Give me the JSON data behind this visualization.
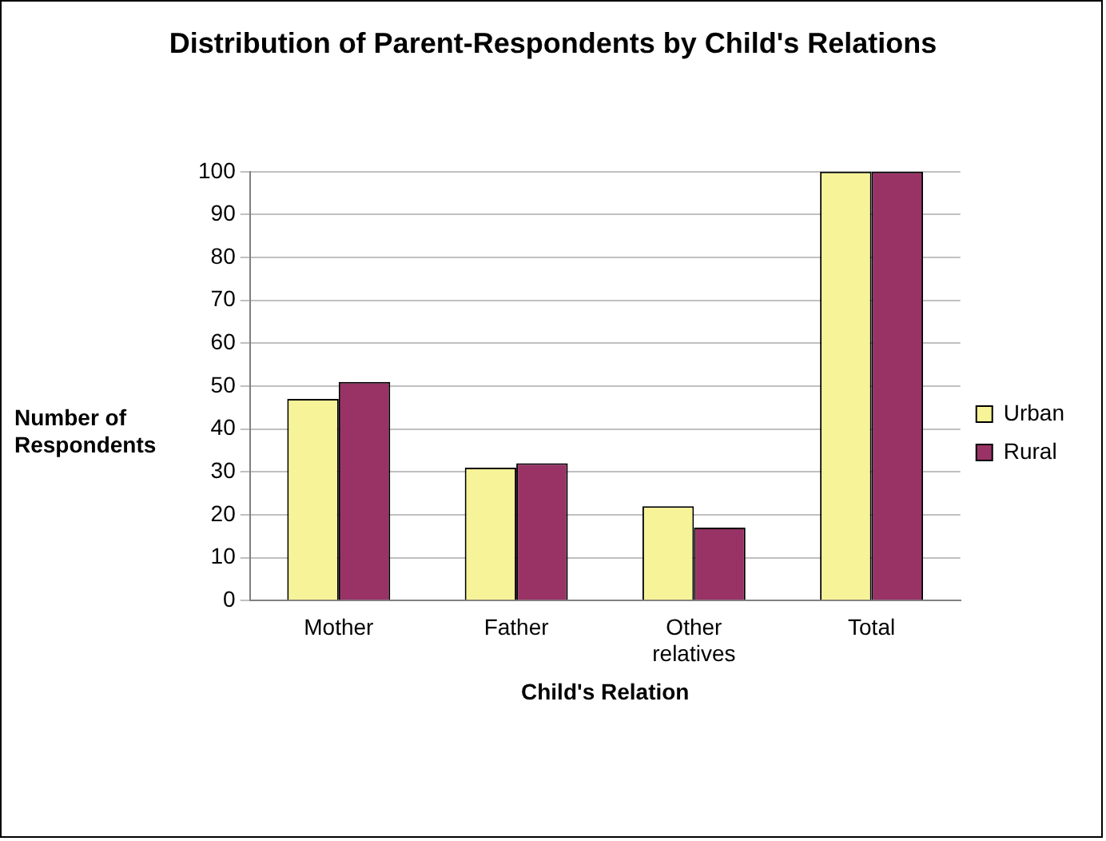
{
  "chart_data": {
    "type": "bar",
    "title": "Distribution of Parent-Respondents by Child's Relations",
    "xlabel": "Child's Relation",
    "ylabel": "Number of Respondents",
    "categories": [
      "Mother",
      "Father",
      "Other relatives",
      "Total"
    ],
    "series": [
      {
        "name": "Urban",
        "color": "#f7f398",
        "values": [
          47,
          31,
          22,
          100
        ]
      },
      {
        "name": "Rural",
        "color": "#993366",
        "values": [
          51,
          32,
          17,
          100
        ]
      }
    ],
    "ylim": [
      0,
      100
    ],
    "yticks": [
      0,
      10,
      20,
      30,
      40,
      50,
      60,
      70,
      80,
      90,
      100
    ],
    "grid": "y",
    "legend": "right"
  }
}
